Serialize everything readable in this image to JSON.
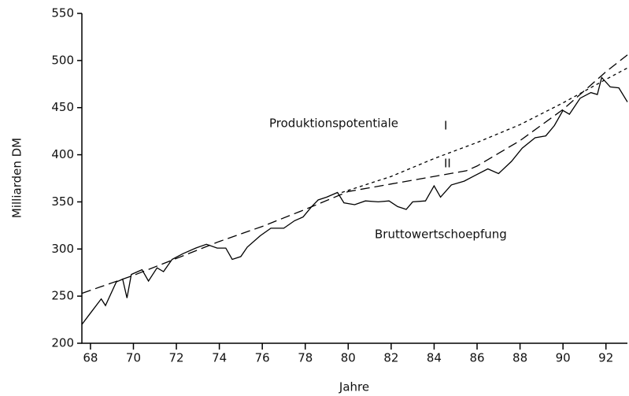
{
  "chart_data": {
    "type": "line",
    "xlabel": "Jahre",
    "ylabel": "Milliarden DM",
    "annotation": "Produktionspotentiale",
    "xlim": [
      67.6,
      93.0
    ],
    "xticks": [
      68,
      70,
      72,
      74,
      76,
      78,
      80,
      82,
      84,
      86,
      88,
      90,
      92
    ],
    "ylim": [
      200,
      550
    ],
    "yticks": [
      200,
      250,
      300,
      350,
      400,
      450,
      500,
      550
    ],
    "series": [
      {
        "name": "Bruttowertschoepfung",
        "color": "#000",
        "dash": "none",
        "x": [
          67.6,
          68,
          68.5,
          68.7,
          69.2,
          69.5,
          69.7,
          69.9,
          70.4,
          70.7,
          71.1,
          71.4,
          71.8,
          72.3,
          72.9,
          73.4,
          73.9,
          74.3,
          74.6,
          75,
          75.3,
          75.9,
          76.4,
          77,
          77.5,
          77.9,
          78.3,
          78.6,
          79,
          79.5,
          79.8,
          80.3,
          80.8,
          81.4,
          81.9,
          82.3,
          82.7,
          83,
          83.6,
          84,
          84.3,
          84.8,
          85.4,
          85.9,
          86.5,
          87,
          87.6,
          88.1,
          88.7,
          89.2,
          89.6,
          90,
          90.3,
          90.8,
          91.3,
          91.6,
          91.8,
          92.2,
          92.6,
          93
        ],
        "values": [
          220,
          232,
          247,
          240,
          265,
          268,
          248,
          273,
          278,
          266,
          280,
          276,
          289,
          295,
          301,
          305,
          301,
          301,
          289,
          292,
          302,
          314,
          322,
          322,
          330,
          334,
          345,
          352,
          355,
          360,
          349,
          347,
          351,
          350,
          351,
          345,
          342,
          350,
          351,
          367,
          355,
          368,
          372,
          378,
          385,
          380,
          393,
          407,
          418,
          420,
          431,
          447,
          443,
          460,
          466,
          464,
          482,
          472,
          471,
          456
        ]
      },
      {
        "name": "I",
        "color": "#000",
        "dash": "4 4",
        "x": [
          79.7,
          82,
          84,
          86,
          88,
          90,
          92,
          93
        ],
        "values": [
          360,
          377,
          396,
          413,
          432,
          455,
          480,
          492
        ]
      },
      {
        "name": "II",
        "color": "#000",
        "dash": "12 6",
        "x": [
          67.6,
          70,
          72,
          74,
          76,
          78,
          80,
          82,
          84,
          85.5,
          86,
          88,
          90,
          92,
          93
        ],
        "values": [
          253,
          272,
          290,
          308,
          324,
          342,
          361,
          369,
          377,
          383,
          388,
          415,
          448,
          488,
          506
        ]
      }
    ]
  }
}
